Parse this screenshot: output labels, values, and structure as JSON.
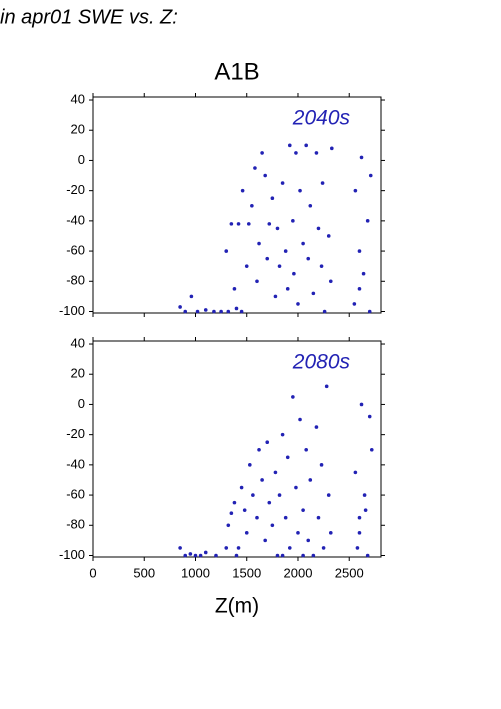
{
  "header": {
    "title": "in apr01 SWE vs. Z:",
    "subtitle": "A1B"
  },
  "chart_data": [
    {
      "type": "scatter",
      "annotation": "2040s",
      "color": "#2222b4",
      "xlim": [
        0,
        2810
      ],
      "ylim": [
        -101,
        42
      ],
      "yticks": [
        -100,
        -80,
        -60,
        -40,
        -20,
        0,
        20,
        40
      ],
      "series": [
        {
          "name": "2040s",
          "color": "#2222b4",
          "x": [
            850,
            900,
            960,
            1020,
            1100,
            1180,
            1250,
            1320,
            1400,
            1450,
            1300,
            1350,
            1380,
            1420,
            1460,
            1500,
            1520,
            1550,
            1580,
            1600,
            1620,
            1650,
            1680,
            1700,
            1720,
            1750,
            1780,
            1800,
            1820,
            1850,
            1880,
            1900,
            1920,
            1950,
            1960,
            1980,
            2000,
            2020,
            2050,
            2080,
            2100,
            2120,
            2150,
            2180,
            2200,
            2230,
            2240,
            2260,
            2300,
            2320,
            2330,
            2550,
            2560,
            2600,
            2620,
            2640,
            2680,
            2700,
            2710,
            2600
          ],
          "values": [
            -97,
            -100,
            -90,
            -100,
            -99,
            -100,
            -100,
            -100,
            -98,
            -100,
            -60,
            -42,
            -85,
            -42,
            -20,
            -70,
            -42,
            -30,
            -5,
            -80,
            -55,
            5,
            -10,
            -65,
            -42,
            -25,
            -90,
            -45,
            -70,
            -15,
            -60,
            -85,
            10,
            -40,
            -75,
            5,
            -95,
            -20,
            -55,
            10,
            -65,
            -30,
            -88,
            5,
            -45,
            -70,
            -15,
            -100,
            -50,
            -80,
            8,
            -95,
            -20,
            -60,
            2,
            -75,
            -40,
            -100,
            -10,
            -85
          ]
        }
      ]
    },
    {
      "type": "scatter",
      "annotation": "2080s",
      "color": "#2222b4",
      "xlabel": "Z(m)",
      "xlim": [
        0,
        2810
      ],
      "ylim": [
        -101,
        42
      ],
      "xticks": [
        0,
        500,
        1000,
        1500,
        2000,
        2500
      ],
      "yticks": [
        -100,
        -80,
        -60,
        -40,
        -20,
        0,
        20,
        40
      ],
      "series": [
        {
          "name": "2080s",
          "color": "#2222b4",
          "x": [
            850,
            900,
            950,
            1000,
            1050,
            1100,
            1200,
            1300,
            1350,
            1400,
            1320,
            1380,
            1420,
            1450,
            1480,
            1500,
            1530,
            1560,
            1600,
            1620,
            1650,
            1680,
            1700,
            1720,
            1750,
            1780,
            1800,
            1820,
            1850,
            1880,
            1900,
            1920,
            1950,
            1980,
            2000,
            2020,
            2050,
            2080,
            2100,
            2120,
            2150,
            2180,
            2200,
            2230,
            2250,
            2280,
            2300,
            2320,
            2050,
            1850,
            2560,
            2580,
            2600,
            2620,
            2650,
            2680,
            2700,
            2720,
            2600,
            2660
          ],
          "values": [
            -95,
            -100,
            -99,
            -100,
            -100,
            -98,
            -100,
            -95,
            -72,
            -100,
            -80,
            -65,
            -95,
            -55,
            -70,
            -85,
            -40,
            -60,
            -75,
            -30,
            -50,
            -90,
            -25,
            -65,
            -80,
            -45,
            -100,
            -60,
            -20,
            -75,
            -35,
            -95,
            5,
            -55,
            -85,
            -10,
            -70,
            -30,
            -90,
            -50,
            -100,
            -15,
            -75,
            -40,
            -95,
            12,
            -60,
            -85,
            -100,
            -100,
            -45,
            -95,
            -75,
            0,
            -60,
            -100,
            -8,
            -30,
            -85,
            -70
          ]
        }
      ]
    }
  ]
}
